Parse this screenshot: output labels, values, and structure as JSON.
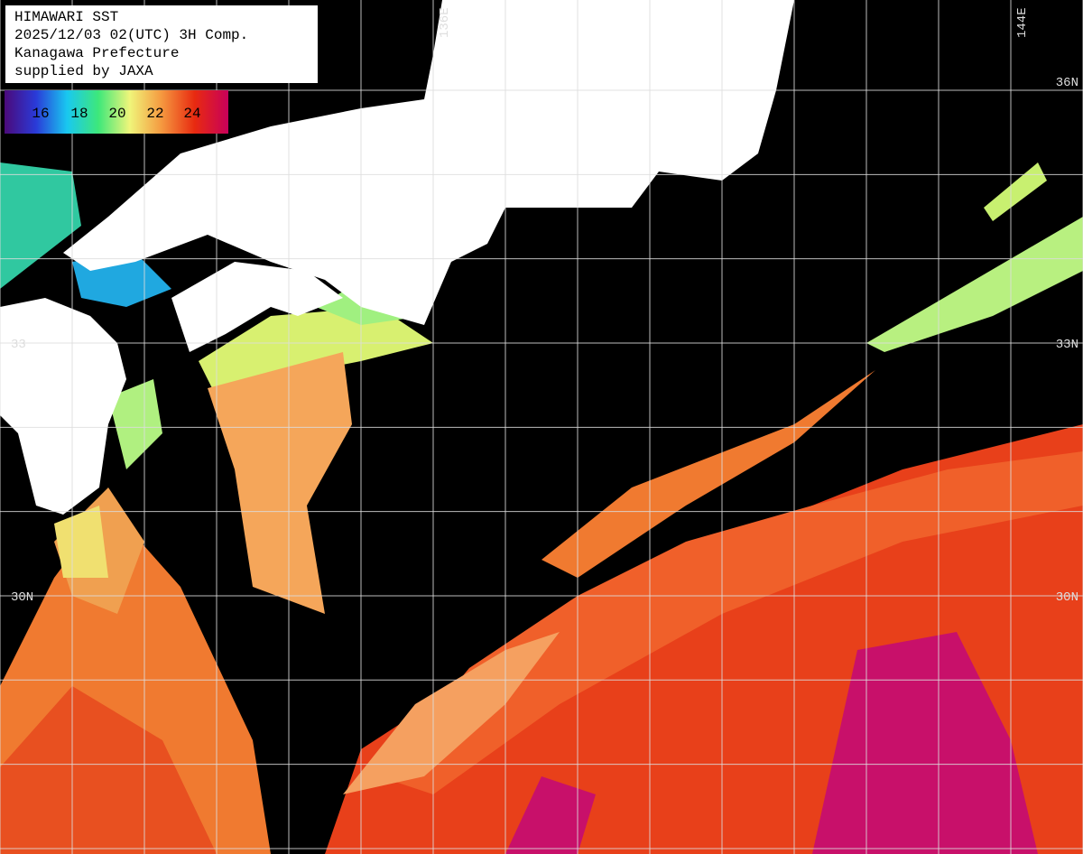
{
  "title_lines": [
    "HIMAWARI SST",
    "2025/12/03 02(UTC) 3H Comp.",
    "Kanagawa Prefecture",
    "supplied by JAXA"
  ],
  "colorbar": {
    "labels": [
      "16",
      "18",
      "20",
      "22",
      "24"
    ]
  },
  "longitude_labels": [
    "136E",
    "144E"
  ],
  "latitude_labels": {
    "right": [
      "36N",
      "33N",
      "30N"
    ],
    "left": [
      "33",
      "30N"
    ]
  }
}
